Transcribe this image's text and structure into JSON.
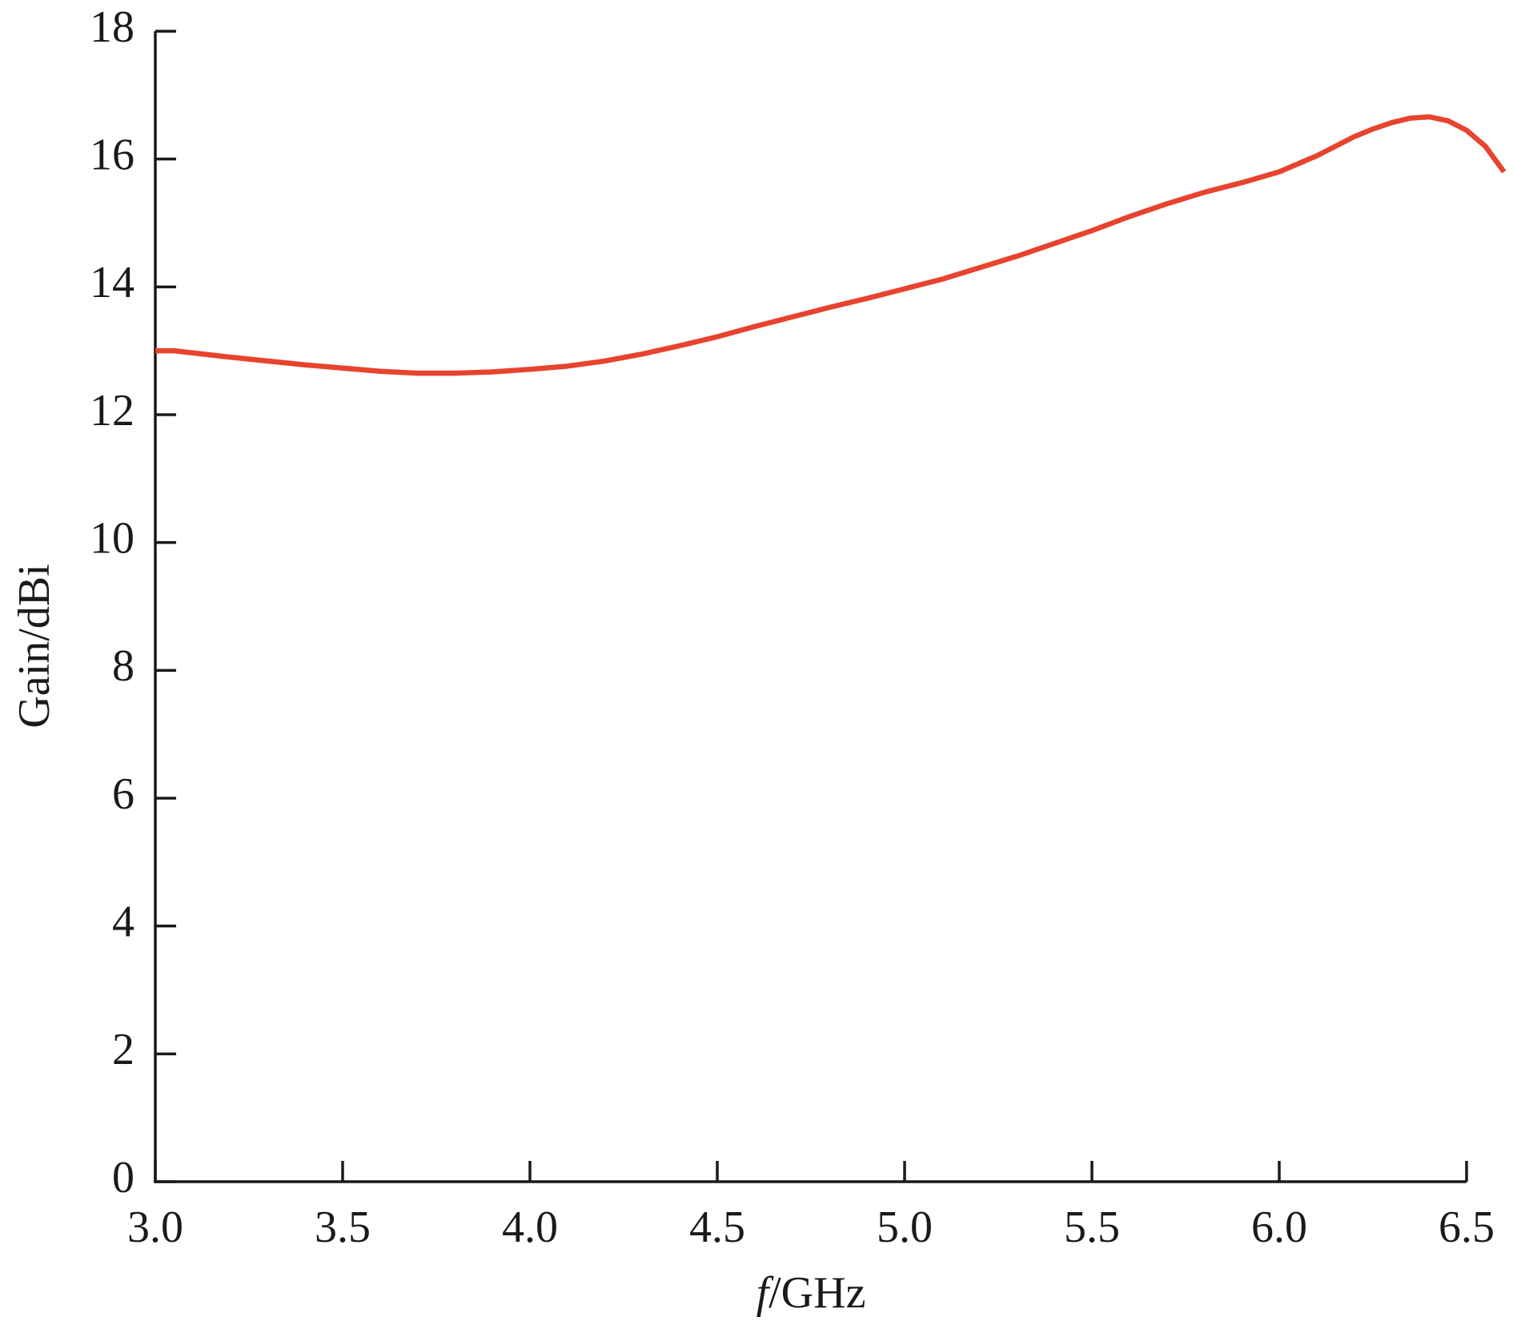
{
  "chart_data": {
    "type": "line",
    "ylabel": "Gain/dBi",
    "xlabel_symbol": "f",
    "xlabel_unit": "/GHz",
    "x": [
      3.0,
      3.05,
      3.2,
      3.4,
      3.6,
      3.7,
      3.8,
      3.9,
      4.0,
      4.1,
      4.2,
      4.3,
      4.4,
      4.5,
      4.6,
      4.7,
      4.8,
      4.9,
      5.0,
      5.1,
      5.2,
      5.3,
      5.4,
      5.5,
      5.6,
      5.7,
      5.8,
      5.9,
      6.0,
      6.1,
      6.2,
      6.25,
      6.3,
      6.35,
      6.4,
      6.45,
      6.5,
      6.55,
      6.6
    ],
    "series": [
      {
        "color": "#e8432e",
        "values": [
          13.0,
          13.0,
          12.9,
          12.78,
          12.68,
          12.65,
          12.65,
          12.67,
          12.71,
          12.76,
          12.84,
          12.95,
          13.08,
          13.22,
          13.38,
          13.53,
          13.68,
          13.82,
          13.97,
          14.12,
          14.3,
          14.48,
          14.68,
          14.88,
          15.1,
          15.3,
          15.48,
          15.63,
          15.8,
          16.05,
          16.35,
          16.47,
          16.57,
          16.64,
          16.66,
          16.6,
          16.45,
          16.2,
          15.8
        ]
      }
    ],
    "xlim": [
      3.0,
      6.5
    ],
    "xticks": [
      {
        "value": 3.0,
        "label": "3.0"
      },
      {
        "value": 3.5,
        "label": "3.5"
      },
      {
        "value": 4.0,
        "label": "4.0"
      },
      {
        "value": 4.5,
        "label": "4.5"
      },
      {
        "value": 5.0,
        "label": "5.0"
      },
      {
        "value": 5.5,
        "label": "5.5"
      },
      {
        "value": 6.0,
        "label": "6.0"
      },
      {
        "value": 6.5,
        "label": "6.5"
      }
    ],
    "ylim": [
      0,
      18
    ],
    "yticks": [
      0,
      2,
      4,
      6,
      8,
      10,
      12,
      14,
      16,
      18
    ],
    "grid": false
  }
}
